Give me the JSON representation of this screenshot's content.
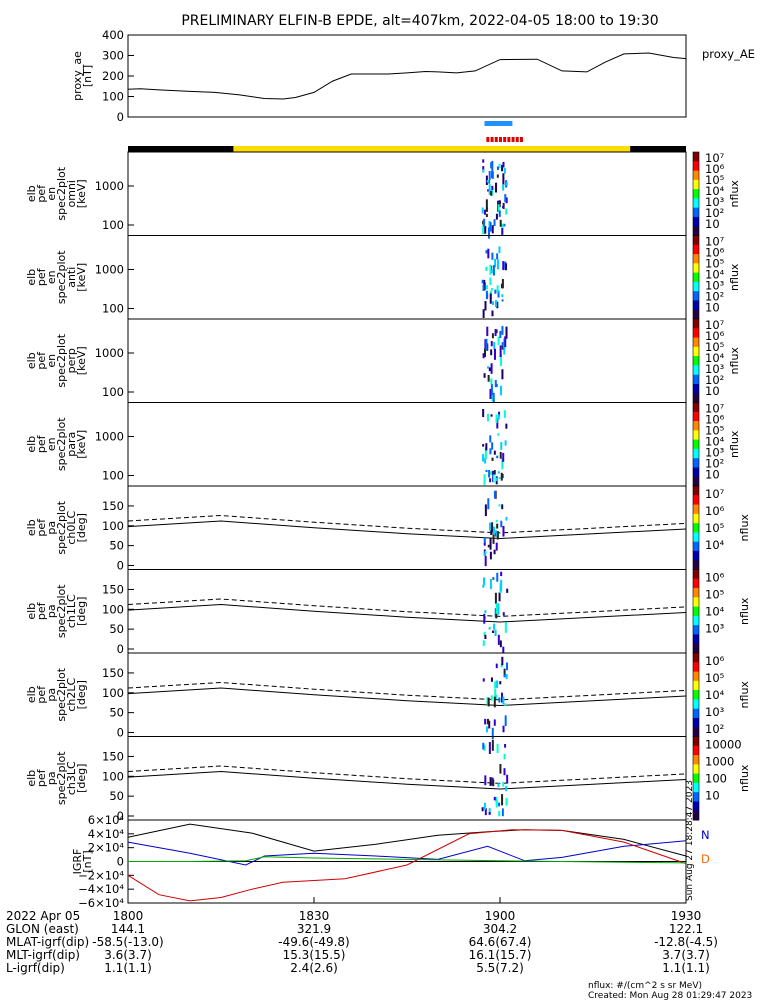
{
  "title": "PRELIMINARY ELFIN-B EPDE, alt=407km, 2022-04-05 18:00 to 19:30",
  "colors": {
    "ae_line": "#000000",
    "orbit_fill": "#ffdd00",
    "orbit_edge": "#000000",
    "science_zone": "#1e90ff",
    "spin_marks": "#e00000",
    "bfield_x": "#000000",
    "bfield_y": "#0000cc",
    "bfield_z": "#d00000",
    "bfield_dip": "#00aa00",
    "label_N": "#0000cc",
    "label_D": "#ff6600"
  },
  "ae_panel": {
    "ylabel": [
      "proxy_ae",
      "[nT]"
    ],
    "legend": "proxy_AE",
    "yticks": [
      "400",
      "300",
      "200",
      "100",
      "0"
    ],
    "ytick_values": [
      400,
      300,
      200,
      100,
      0
    ]
  },
  "spectra_panels": [
    {
      "ylabel": [
        "elb",
        "pef",
        "en",
        "spec2plot",
        "omni",
        "[keV]"
      ],
      "yticks": [
        "1000",
        "100"
      ],
      "cbar_top": "10⁷",
      "cbar_ticks": [
        "10⁶",
        "10⁵",
        "10⁴",
        "10³",
        "10²",
        "10"
      ],
      "cbar_label": "nflux"
    },
    {
      "ylabel": [
        "elb",
        "pef",
        "en",
        "spec2plot",
        "anti",
        "[keV]"
      ],
      "yticks": [
        "1000",
        "100"
      ],
      "cbar_top": "10⁷",
      "cbar_ticks": [
        "10⁶",
        "10⁵",
        "10⁴",
        "10³",
        "10²",
        "10"
      ],
      "cbar_label": "nflux"
    },
    {
      "ylabel": [
        "elb",
        "pef",
        "en",
        "spec2plot",
        "perp",
        "[keV]"
      ],
      "yticks": [
        "1000",
        "100"
      ],
      "cbar_top": "10⁷",
      "cbar_ticks": [
        "10⁶",
        "10⁵",
        "10⁴",
        "10³",
        "10²",
        "10"
      ],
      "cbar_label": "nflux"
    },
    {
      "ylabel": [
        "elb",
        "pef",
        "en",
        "spec2plot",
        "para",
        "[keV]"
      ],
      "yticks": [
        "1000",
        "100"
      ],
      "cbar_top": "10⁷",
      "cbar_ticks": [
        "10⁶",
        "10⁵",
        "10⁴",
        "10³",
        "10²",
        "10"
      ],
      "cbar_label": "nflux"
    }
  ],
  "pa_panels": [
    {
      "ylabel": [
        "elb",
        "pef",
        "pa",
        "spec2plot",
        "ch0LC",
        "[deg]"
      ],
      "yticks": [
        "150",
        "100",
        "50",
        "0"
      ],
      "cbar_ticks": [
        "10⁷",
        "10⁶",
        "10⁵",
        "10⁴"
      ],
      "cbar_label": "nflux"
    },
    {
      "ylabel": [
        "elb",
        "pef",
        "pa",
        "spec2plot",
        "ch1LC",
        "[deg]"
      ],
      "yticks": [
        "150",
        "100",
        "50",
        "0"
      ],
      "cbar_ticks": [
        "10⁶",
        "10⁵",
        "10⁴",
        "10³"
      ],
      "cbar_label": "nflux"
    },
    {
      "ylabel": [
        "elb",
        "pef",
        "pa",
        "spec2plot",
        "ch2LC",
        "[deg]"
      ],
      "yticks": [
        "150",
        "100",
        "50",
        "0"
      ],
      "cbar_ticks": [
        "10⁶",
        "10⁵",
        "10⁴",
        "10³",
        "10²"
      ],
      "cbar_label": "nflux"
    },
    {
      "ylabel": [
        "elb",
        "pef",
        "pa",
        "spec2plot",
        "ch3LC",
        "[deg]"
      ],
      "yticks": [
        "150",
        "100",
        "50",
        "0"
      ],
      "cbar_ticks": [
        "10000",
        "1000",
        "100",
        "10"
      ],
      "cbar_label": "nflux"
    }
  ],
  "igrf_panel": {
    "ylabel": [
      "IGRF",
      "[nT]"
    ],
    "yticks": [
      "6×10⁴",
      "4×10⁴",
      "2×10⁴",
      "0",
      "−2×10⁴",
      "−4×10⁴",
      "−6×10⁴"
    ],
    "label_N": "N",
    "label_D": "D",
    "side_text": "Sun Aug 27 18:28:47 2023"
  },
  "xaxis": {
    "ticks": [
      "1800",
      "1830",
      "1900",
      "1930"
    ],
    "rows": [
      {
        "label": "2022 Apr 05",
        "values": [
          "1800",
          "1830",
          "1900",
          "1930"
        ]
      },
      {
        "label": "GLON (east)",
        "values": [
          "144.1",
          "321.9",
          "304.2",
          "122.1"
        ]
      },
      {
        "label": "MLAT-igrf(dip)",
        "values": [
          "-58.5(-13.0)",
          "-49.6(-49.8)",
          "64.6(67.4)",
          "-12.8(-4.5)"
        ]
      },
      {
        "label": "MLT-igrf(dip)",
        "values": [
          "3.6(3.7)",
          "15.3(15.5)",
          "16.1(15.7)",
          "3.7(3.7)"
        ]
      },
      {
        "label": "L-igrf(dip)",
        "values": [
          "1.1(1.1)",
          "2.4(2.6)",
          "5.5(7.2)",
          "1.1(1.1)"
        ]
      }
    ]
  },
  "footer": {
    "units": "nflux: #/(cm^2 s sr MeV)",
    "created": "Created: Mon Aug 28 01:29:47 2023"
  },
  "chart_data": [
    {
      "type": "line",
      "title": "PRELIMINARY ELFIN-B EPDE, alt=407km, 2022-04-05 18:00 to 19:30",
      "ylabel": "proxy_ae [nT]",
      "series": [
        {
          "name": "proxy_AE",
          "x": [
            0,
            2,
            5,
            10,
            14,
            18,
            22,
            25,
            27,
            30,
            33,
            36,
            39,
            42,
            45,
            48,
            50,
            53,
            56,
            60,
            66,
            70,
            74,
            77,
            80,
            84,
            88,
            90
          ],
          "y": [
            135,
            138,
            132,
            125,
            120,
            108,
            90,
            88,
            95,
            120,
            175,
            210,
            210,
            210,
            215,
            222,
            220,
            215,
            225,
            280,
            282,
            225,
            220,
            268,
            308,
            312,
            290,
            285
          ]
        }
      ],
      "ylim": [
        0,
        400
      ],
      "xlim": [
        0,
        90
      ]
    },
    {
      "type": "heatmap",
      "ylabel": "elb pef en spec2plot [keV]",
      "xlim": [
        0,
        90
      ],
      "ylim": [
        50,
        7000
      ],
      "yscale": "log",
      "active_interval_minutes": [
        57,
        61
      ],
      "zlim": [
        10,
        10000000
      ],
      "zlabel": "nflux"
    },
    {
      "type": "line",
      "ylabel": "IGRF [nT]",
      "ylim": [
        -60000,
        60000
      ],
      "xlim": [
        0,
        90
      ],
      "series": [
        {
          "name": "N",
          "x": [
            0,
            10,
            20,
            30,
            40,
            50,
            58,
            64,
            70,
            80,
            90
          ],
          "y": [
            35000,
            54000,
            41000,
            15000,
            25000,
            38000,
            43000,
            46000,
            45000,
            32000,
            8000
          ]
        },
        {
          "name": "",
          "x": [
            0,
            10,
            19,
            22,
            30,
            40,
            50,
            58,
            64,
            70,
            80,
            90
          ],
          "y": [
            28000,
            12000,
            -5000,
            8000,
            12000,
            8000,
            3000,
            22000,
            1000,
            6000,
            22000,
            30000
          ]
        },
        {
          "name": "D",
          "x": [
            0,
            5,
            10,
            15,
            20,
            25,
            35,
            45,
            55,
            62,
            70,
            80,
            90
          ],
          "y": [
            -20000,
            -48000,
            -57000,
            -52000,
            -40000,
            -30000,
            -25000,
            -5000,
            40000,
            46000,
            45000,
            28000,
            -3000
          ]
        },
        {
          "name": "",
          "x": [
            0,
            10,
            19,
            22,
            30,
            60,
            90
          ],
          "y": [
            0,
            0,
            1000,
            7000,
            5000,
            1000,
            -2000
          ]
        }
      ]
    }
  ]
}
